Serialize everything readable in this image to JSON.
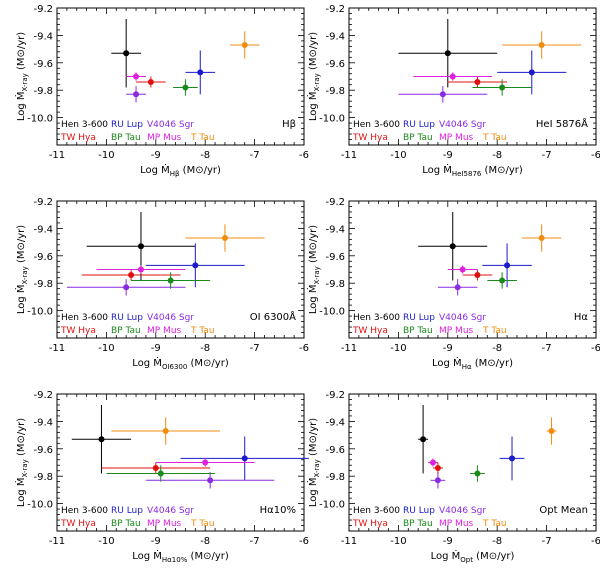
{
  "legend": [
    {
      "name": "Hen 3-600",
      "color": "#000000"
    },
    {
      "name": "RU Lup",
      "color": "#1a1acc"
    },
    {
      "name": "V4046 Sgr",
      "color": "#8a2be2"
    },
    {
      "name": "TW Hya",
      "color": "#e01010"
    },
    {
      "name": "BP Tau",
      "color": "#1a8a1a"
    },
    {
      "name": "MP Mus",
      "color": "#e020e0"
    },
    {
      "name": "T Tau",
      "color": "#f08c10"
    }
  ],
  "chart_data": [
    {
      "type": "scatter",
      "tag": "Hβ",
      "xlabel": "Log Ṁ_Hβ (M⊙/yr)",
      "ylabel": "Log Ṁ_X-ray (M⊙/yr)",
      "xlim": [
        -11,
        -6
      ],
      "ylim": [
        -10.2,
        -9.2
      ],
      "xticks": [
        "-11",
        "-10",
        "-9",
        "-8",
        "-7",
        "-6"
      ],
      "yticks": [
        "-9.2",
        "-9.4",
        "-9.6",
        "-9.8",
        "-10.0"
      ],
      "points": [
        {
          "name": "Hen 3-600",
          "x": -9.6,
          "y": -9.53,
          "xerr": 0.3,
          "yerr": 0.25
        },
        {
          "name": "RU Lup",
          "x": -8.1,
          "y": -9.67,
          "xerr": 0.3,
          "yerr": 0.16
        },
        {
          "name": "V4046 Sgr",
          "x": -9.4,
          "y": -9.83,
          "xerr": 0.2,
          "yerr": 0.06
        },
        {
          "name": "TW Hya",
          "x": -9.1,
          "y": -9.74,
          "xerr": 0.3,
          "yerr": 0.04
        },
        {
          "name": "BP Tau",
          "x": -8.4,
          "y": -9.78,
          "xerr": 0.25,
          "yerr": 0.06
        },
        {
          "name": "MP Mus",
          "x": -9.4,
          "y": -9.7,
          "xerr": 0.2,
          "yerr": 0.03
        },
        {
          "name": "T Tau",
          "x": -7.2,
          "y": -9.47,
          "xerr": 0.3,
          "yerr": 0.1
        }
      ]
    },
    {
      "type": "scatter",
      "tag": "HeI 5876Å",
      "xlabel": "Log Ṁ_HeI5876 (M⊙/yr)",
      "ylabel": "Log Ṁ_X-ray (M⊙/yr)",
      "xlim": [
        -11,
        -6
      ],
      "ylim": [
        -10.2,
        -9.2
      ],
      "xticks": [
        "-11",
        "-10",
        "-9",
        "-8",
        "-7",
        "-6"
      ],
      "yticks": [
        "-9.2",
        "-9.4",
        "-9.6",
        "-9.8",
        "-10.0"
      ],
      "points": [
        {
          "name": "Hen 3-600",
          "x": -9.0,
          "y": -9.53,
          "xerr": 1.0,
          "yerr": 0.25
        },
        {
          "name": "RU Lup",
          "x": -7.3,
          "y": -9.67,
          "xerr": 0.7,
          "yerr": 0.16
        },
        {
          "name": "V4046 Sgr",
          "x": -9.1,
          "y": -9.83,
          "xerr": 0.9,
          "yerr": 0.06
        },
        {
          "name": "TW Hya",
          "x": -8.4,
          "y": -9.74,
          "xerr": 0.6,
          "yerr": 0.04
        },
        {
          "name": "BP Tau",
          "x": -7.9,
          "y": -9.78,
          "xerr": 0.6,
          "yerr": 0.06
        },
        {
          "name": "MP Mus",
          "x": -8.9,
          "y": -9.7,
          "xerr": 0.8,
          "yerr": 0.03
        },
        {
          "name": "T Tau",
          "x": -7.1,
          "y": -9.47,
          "xerr": 0.8,
          "yerr": 0.1
        }
      ]
    },
    {
      "type": "scatter",
      "tag": "OI 6300Å",
      "xlabel": "Log Ṁ_OI6300 (M⊙/yr)",
      "ylabel": "Log Ṁ_X-ray (M⊙/yr)",
      "xlim": [
        -11,
        -6
      ],
      "ylim": [
        -10.2,
        -9.2
      ],
      "xticks": [
        "-11",
        "-10",
        "-9",
        "-8",
        "-7",
        "-6"
      ],
      "yticks": [
        "-9.2",
        "-9.4",
        "-9.6",
        "-9.8",
        "-10.0"
      ],
      "points": [
        {
          "name": "Hen 3-600",
          "x": -9.3,
          "y": -9.53,
          "xerr": 1.1,
          "yerr": 0.25
        },
        {
          "name": "RU Lup",
          "x": -8.2,
          "y": -9.67,
          "xerr": 1.0,
          "yerr": 0.16
        },
        {
          "name": "V4046 Sgr",
          "x": -9.6,
          "y": -9.83,
          "xerr": 1.2,
          "yerr": 0.06
        },
        {
          "name": "TW Hya",
          "x": -9.5,
          "y": -9.74,
          "xerr": 1.0,
          "yerr": 0.04
        },
        {
          "name": "BP Tau",
          "x": -8.7,
          "y": -9.78,
          "xerr": 0.8,
          "yerr": 0.06
        },
        {
          "name": "MP Mus",
          "x": -9.3,
          "y": -9.7,
          "xerr": 0.9,
          "yerr": 0.03
        },
        {
          "name": "T Tau",
          "x": -7.6,
          "y": -9.47,
          "xerr": 0.8,
          "yerr": 0.1
        }
      ]
    },
    {
      "type": "scatter",
      "tag": "Hα",
      "xlabel": "Log Ṁ_Hα (M⊙/yr)",
      "ylabel": "Log Ṁ_X-ray (M⊙/yr)",
      "xlim": [
        -11,
        -6
      ],
      "ylim": [
        -10.2,
        -9.2
      ],
      "xticks": [
        "-11",
        "-10",
        "-9",
        "-8",
        "-7",
        "-6"
      ],
      "yticks": [
        "-9.2",
        "-9.4",
        "-9.6",
        "-9.8",
        "-10.0"
      ],
      "points": [
        {
          "name": "Hen 3-600",
          "x": -8.9,
          "y": -9.53,
          "xerr": 0.7,
          "yerr": 0.25
        },
        {
          "name": "RU Lup",
          "x": -7.8,
          "y": -9.67,
          "xerr": 0.5,
          "yerr": 0.16
        },
        {
          "name": "V4046 Sgr",
          "x": -8.8,
          "y": -9.83,
          "xerr": 0.4,
          "yerr": 0.06
        },
        {
          "name": "TW Hya",
          "x": -8.4,
          "y": -9.74,
          "xerr": 0.3,
          "yerr": 0.04
        },
        {
          "name": "BP Tau",
          "x": -7.9,
          "y": -9.78,
          "xerr": 0.3,
          "yerr": 0.06
        },
        {
          "name": "MP Mus",
          "x": -8.7,
          "y": -9.7,
          "xerr": 0.3,
          "yerr": 0.03
        },
        {
          "name": "T Tau",
          "x": -7.1,
          "y": -9.47,
          "xerr": 0.4,
          "yerr": 0.1
        }
      ]
    },
    {
      "type": "scatter",
      "tag": "Hα10%",
      "xlabel": "Log Ṁ_Hα10% (M⊙/yr)",
      "ylabel": "Log Ṁ_X-ray (M⊙/yr)",
      "xlim": [
        -11,
        -6
      ],
      "ylim": [
        -10.2,
        -9.2
      ],
      "xticks": [
        "-11",
        "-10",
        "-9",
        "-8",
        "-7",
        "-6"
      ],
      "yticks": [
        "-9.2",
        "-9.4",
        "-9.6",
        "-9.8",
        "-10.0"
      ],
      "points": [
        {
          "name": "Hen 3-600",
          "x": -10.1,
          "y": -9.53,
          "xerr": 0.6,
          "yerr": 0.25
        },
        {
          "name": "RU Lup",
          "x": -7.2,
          "y": -9.67,
          "xerr": 1.3,
          "yerr": 0.16
        },
        {
          "name": "V4046 Sgr",
          "x": -7.9,
          "y": -9.83,
          "xerr": 1.3,
          "yerr": 0.06
        },
        {
          "name": "TW Hya",
          "x": -9.0,
          "y": -9.74,
          "xerr": 1.1,
          "yerr": 0.04
        },
        {
          "name": "BP Tau",
          "x": -8.9,
          "y": -9.78,
          "xerr": 1.1,
          "yerr": 0.06
        },
        {
          "name": "MP Mus",
          "x": -8.0,
          "y": -9.7,
          "xerr": 1.0,
          "yerr": 0.03
        },
        {
          "name": "T Tau",
          "x": -8.8,
          "y": -9.47,
          "xerr": 1.1,
          "yerr": 0.1
        }
      ]
    },
    {
      "type": "scatter",
      "tag": "Opt Mean",
      "xlabel": "Log Ṁ_Opt (M⊙/yr)",
      "ylabel": "Log Ṁ_X-ray (M⊙/yr)",
      "xlim": [
        -11,
        -6
      ],
      "ylim": [
        -10.2,
        -9.2
      ],
      "xticks": [
        "-11",
        "-10",
        "-9",
        "-8",
        "-7",
        "-6"
      ],
      "yticks": [
        "-9.2",
        "-9.4",
        "-9.6",
        "-9.8",
        "-10.0"
      ],
      "points": [
        {
          "name": "Hen 3-600",
          "x": -9.5,
          "y": -9.53,
          "xerr": 0.1,
          "yerr": 0.25
        },
        {
          "name": "RU Lup",
          "x": -7.7,
          "y": -9.67,
          "xerr": 0.25,
          "yerr": 0.16
        },
        {
          "name": "V4046 Sgr",
          "x": -9.2,
          "y": -9.83,
          "xerr": 0.15,
          "yerr": 0.06
        },
        {
          "name": "TW Hya",
          "x": -9.2,
          "y": -9.74,
          "xerr": 0.1,
          "yerr": 0.04
        },
        {
          "name": "BP Tau",
          "x": -8.4,
          "y": -9.78,
          "xerr": 0.15,
          "yerr": 0.06
        },
        {
          "name": "MP Mus",
          "x": -9.3,
          "y": -9.7,
          "xerr": 0.1,
          "yerr": 0.03
        },
        {
          "name": "T Tau",
          "x": -6.9,
          "y": -9.47,
          "xerr": 0.1,
          "yerr": 0.1
        }
      ]
    }
  ]
}
